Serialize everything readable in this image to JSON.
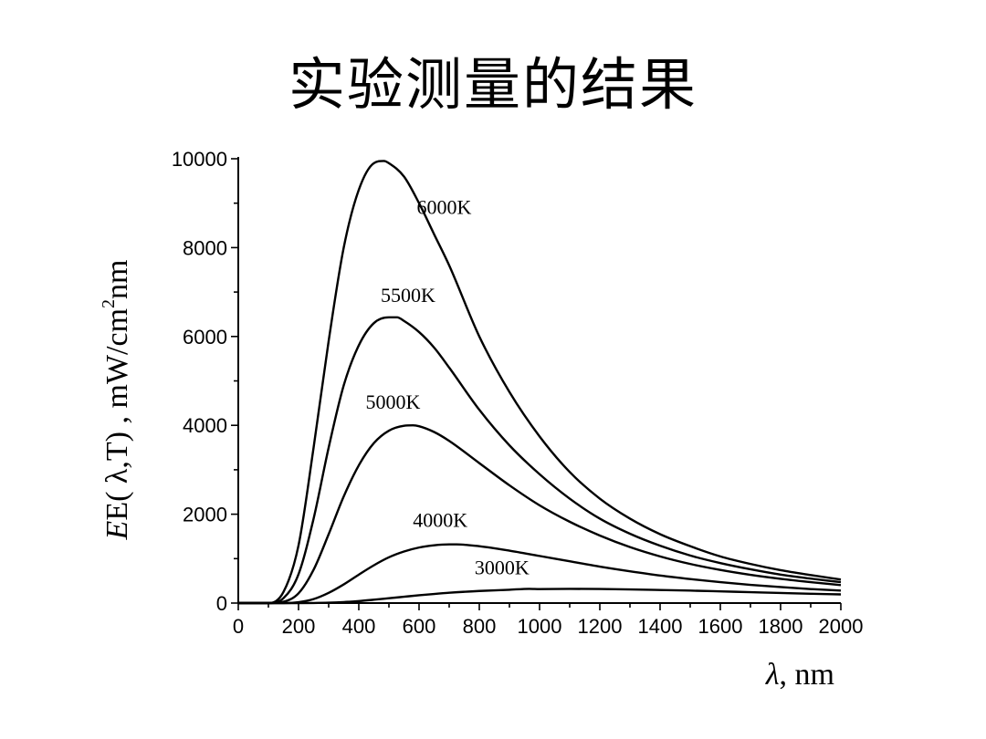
{
  "slide": {
    "title": "实验测量的结果"
  },
  "chart_data": {
    "type": "line",
    "title": "",
    "xlabel": {
      "symbol": "λ",
      "unit": ", nm"
    },
    "ylabel": {
      "prefix": "E( λ,T) , mW/cm",
      "sup": "2",
      "suffix": "nm"
    },
    "xlim": [
      0,
      2000
    ],
    "ylim": [
      0,
      10000
    ],
    "xticks": [
      0,
      200,
      400,
      600,
      800,
      1000,
      1200,
      1400,
      1600,
      1800,
      2000
    ],
    "yticks": [
      0,
      2000,
      4000,
      6000,
      8000,
      10000
    ],
    "x_minor_step": 100,
    "y_minor_step": 1000,
    "grid": false,
    "colors": {
      "curve": "#000000",
      "background": "#ffffff"
    },
    "x": [
      100,
      150,
      200,
      250,
      300,
      350,
      400,
      450,
      500,
      550,
      600,
      650,
      700,
      800,
      900,
      1000,
      1100,
      1200,
      1300,
      1400,
      1500,
      1600,
      1700,
      1800,
      1900,
      2000
    ],
    "series": [
      {
        "name": "6000K",
        "peak": {
          "x": 483,
          "y": 9950
        },
        "values": [
          0,
          250,
          1300,
          3500,
          5900,
          8000,
          9300,
          9900,
          9900,
          9600,
          9000,
          8300,
          7600,
          6000,
          4750,
          3750,
          2950,
          2350,
          1900,
          1550,
          1280,
          1050,
          880,
          740,
          630,
          530
        ]
      },
      {
        "name": "5500K",
        "peak": {
          "x": 527,
          "y": 6430
        },
        "values": [
          0,
          110,
          650,
          1900,
          3500,
          4900,
          5800,
          6300,
          6430,
          6350,
          6100,
          5750,
          5300,
          4350,
          3550,
          2900,
          2350,
          1900,
          1560,
          1290,
          1070,
          900,
          760,
          640,
          550,
          470
        ]
      },
      {
        "name": "5000K",
        "peak": {
          "x": 580,
          "y": 4000
        },
        "values": [
          0,
          30,
          220,
          750,
          1550,
          2400,
          3100,
          3600,
          3880,
          3990,
          3980,
          3850,
          3650,
          3150,
          2650,
          2200,
          1830,
          1520,
          1260,
          1050,
          880,
          745,
          635,
          545,
          470,
          405
        ]
      },
      {
        "name": "4000K",
        "peak": {
          "x": 725,
          "y": 1320
        },
        "values": [
          0,
          0,
          20,
          90,
          230,
          420,
          640,
          850,
          1030,
          1160,
          1250,
          1300,
          1320,
          1280,
          1180,
          1060,
          940,
          820,
          715,
          620,
          540,
          470,
          410,
          360,
          315,
          280
        ]
      },
      {
        "name": "3000K",
        "peak": {
          "x": 966,
          "y": 320
        },
        "values": [
          0,
          0,
          0,
          2,
          8,
          22,
          45,
          75,
          108,
          142,
          175,
          205,
          232,
          272,
          300,
          315,
          320,
          316,
          307,
          294,
          280,
          263,
          245,
          228,
          210,
          195
        ]
      }
    ]
  }
}
